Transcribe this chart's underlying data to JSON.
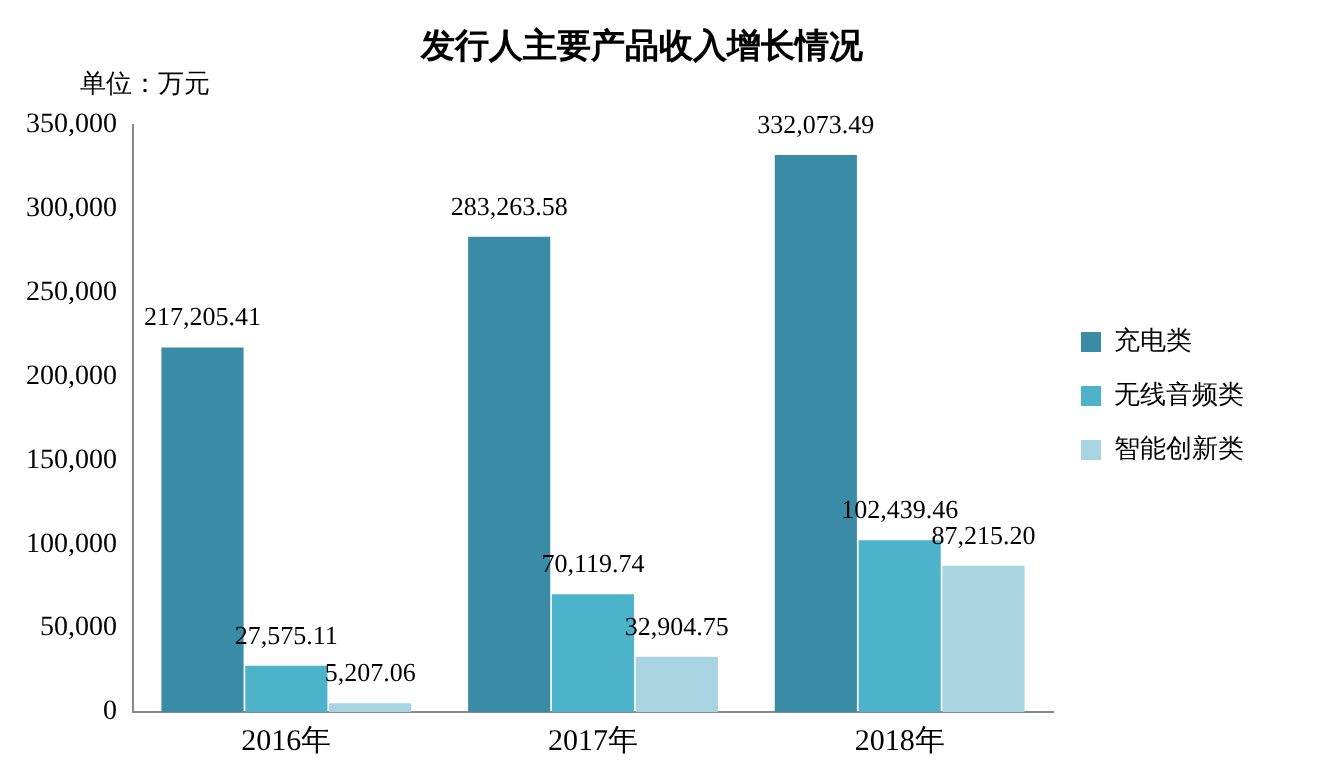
{
  "chart_data": {
    "type": "bar",
    "title": "发行人主要产品收入增长情况",
    "annotations": [
      "单位：万元"
    ],
    "categories": [
      "2016年",
      "2017年",
      "2018年"
    ],
    "series": [
      {
        "name": "充电类",
        "color": "#3a8ca6",
        "values": [
          217205.41,
          283263.58,
          332073.49
        ],
        "value_labels": [
          "217,205.41",
          "283,263.58",
          "332,073.49"
        ]
      },
      {
        "name": "无线音频类",
        "color": "#4cb3cb",
        "values": [
          27575.11,
          70119.74,
          102439.46
        ],
        "value_labels": [
          "27,575.11",
          "70,119.74",
          "102,439.46"
        ]
      },
      {
        "name": "智能创新类",
        "color": "#a8d4e2",
        "values": [
          5207.06,
          32904.75,
          87215.2
        ],
        "value_labels": [
          "5,207.06",
          "32,904.75",
          "87,215.20"
        ]
      }
    ],
    "ylim": [
      0,
      350000
    ],
    "yticks": [
      {
        "value": 0,
        "label": "0"
      },
      {
        "value": 50000,
        "label": "50,000"
      },
      {
        "value": 100000,
        "label": "100,000"
      },
      {
        "value": 150000,
        "label": "150,000"
      },
      {
        "value": 200000,
        "label": "200,000"
      },
      {
        "value": 250000,
        "label": "250,000"
      },
      {
        "value": 300000,
        "label": "300,000"
      },
      {
        "value": 350000,
        "label": "350,000"
      }
    ],
    "grid": false,
    "legend": "right"
  }
}
